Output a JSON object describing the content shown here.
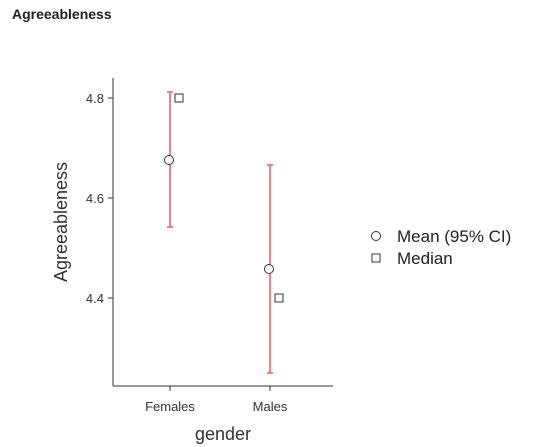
{
  "page": {
    "title": "Agreeableness"
  },
  "colors": {
    "error_bar": "#f08080",
    "marker_stroke": "#333333",
    "axis": "#333333"
  },
  "chart_data": {
    "type": "scatter",
    "title": "",
    "xlabel": "gender",
    "ylabel": "Agreeableness",
    "categories": [
      "Females",
      "Males"
    ],
    "ylim": [
      4.24,
      4.84
    ],
    "yticks": [
      4.4,
      4.6,
      4.8
    ],
    "ytick_labels": [
      "4.4",
      "4.6",
      "4.8"
    ],
    "grid": false,
    "legend_position": "right",
    "series": [
      {
        "name": "Mean (95% CI)",
        "marker": "circle",
        "values": [
          4.676,
          4.458
        ],
        "ci_lower": [
          4.542,
          4.25
        ],
        "ci_upper": [
          4.812,
          4.666
        ]
      },
      {
        "name": "Median",
        "marker": "square",
        "values": [
          4.8,
          4.4
        ]
      }
    ]
  }
}
